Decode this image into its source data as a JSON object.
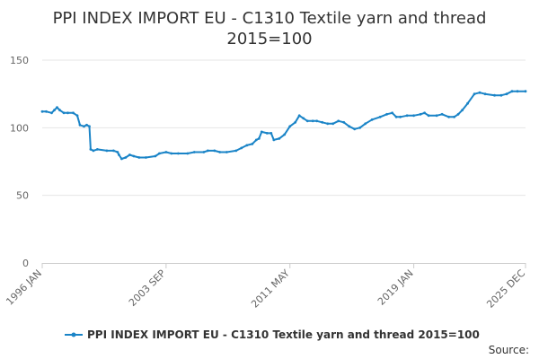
{
  "chart_data": {
    "type": "line",
    "title_lines": [
      "PPI INDEX IMPORT EU - C1310 Textile yarn and thread",
      "2015=100"
    ],
    "xlabel": "",
    "ylabel": "",
    "ylim": [
      0,
      150
    ],
    "y_ticks": [
      0,
      50,
      100,
      150
    ],
    "x_range": [
      "1996 JAN",
      "2025 DEC"
    ],
    "x_ticks": [
      "1996 JAN",
      "2003 SEP",
      "2011 MAY",
      "2019 JAN",
      "2025 DEC"
    ],
    "grid": true,
    "legend_position": "bottom",
    "colors": {
      "series": "#1a84c7",
      "grid": "#e6e6e6",
      "axis": "#cccccc"
    },
    "series": [
      {
        "name": "PPI INDEX IMPORT EU - C1310 Textile yarn and thread 2015=100",
        "points": [
          [
            "1996 JAN",
            112
          ],
          [
            "1996 APR",
            112
          ],
          [
            "1996 AUG",
            111
          ],
          [
            "1996 OCT",
            113
          ],
          [
            "1996 DEC",
            115
          ],
          [
            "1997 FEB",
            113
          ],
          [
            "1997 MAY",
            111
          ],
          [
            "1997 AUG",
            111
          ],
          [
            "1997 DEC",
            111
          ],
          [
            "1998 MAR",
            109
          ],
          [
            "1998 MAY",
            102
          ],
          [
            "1998 AUG",
            101
          ],
          [
            "1998 OCT",
            102
          ],
          [
            "1998 DEC",
            101
          ],
          [
            "1999 JAN",
            84
          ],
          [
            "1999 MAR",
            83
          ],
          [
            "1999 JUN",
            84
          ],
          [
            "2000 JAN",
            83
          ],
          [
            "2000 JUN",
            83
          ],
          [
            "2000 SEP",
            82
          ],
          [
            "2000 OCT",
            80
          ],
          [
            "2000 DEC",
            77
          ],
          [
            "2001 MAR",
            78
          ],
          [
            "2001 JUN",
            80
          ],
          [
            "2001 SEP",
            79
          ],
          [
            "2002 JAN",
            78
          ],
          [
            "2002 JUN",
            78
          ],
          [
            "2003 JAN",
            79
          ],
          [
            "2003 APR",
            81
          ],
          [
            "2003 SEP",
            82
          ],
          [
            "2004 JAN",
            81
          ],
          [
            "2004 JUN",
            81
          ],
          [
            "2005 JAN",
            81
          ],
          [
            "2005 JUN",
            82
          ],
          [
            "2006 JAN",
            82
          ],
          [
            "2006 APR",
            83
          ],
          [
            "2006 SEP",
            83
          ],
          [
            "2007 JAN",
            82
          ],
          [
            "2007 JUN",
            82
          ],
          [
            "2008 JAN",
            83
          ],
          [
            "2008 MAY",
            85
          ],
          [
            "2008 SEP",
            87
          ],
          [
            "2009 JAN",
            88
          ],
          [
            "2009 APR",
            91
          ],
          [
            "2009 JUN",
            92
          ],
          [
            "2009 AUG",
            97
          ],
          [
            "2009 DEC",
            96
          ],
          [
            "2010 MAR",
            96
          ],
          [
            "2010 MAY",
            91
          ],
          [
            "2010 SEP",
            92
          ],
          [
            "2011 JAN",
            95
          ],
          [
            "2011 MAY",
            101
          ],
          [
            "2011 SEP",
            104
          ],
          [
            "2011 DEC",
            109
          ],
          [
            "2012 MAR",
            107
          ],
          [
            "2012 JUN",
            105
          ],
          [
            "2012 OCT",
            105
          ],
          [
            "2013 JAN",
            105
          ],
          [
            "2013 MAY",
            104
          ],
          [
            "2013 SEP",
            103
          ],
          [
            "2014 JAN",
            103
          ],
          [
            "2014 MAY",
            105
          ],
          [
            "2014 SEP",
            104
          ],
          [
            "2015 JAN",
            101
          ],
          [
            "2015 MAY",
            99
          ],
          [
            "2015 SEP",
            100
          ],
          [
            "2016 JAN",
            103
          ],
          [
            "2016 JUN",
            106
          ],
          [
            "2016 DEC",
            108
          ],
          [
            "2017 MAY",
            110
          ],
          [
            "2017 SEP",
            111
          ],
          [
            "2017 DEC",
            108
          ],
          [
            "2018 MAR",
            108
          ],
          [
            "2018 AUG",
            109
          ],
          [
            "2019 JAN",
            109
          ],
          [
            "2019 JUN",
            110
          ],
          [
            "2019 SEP",
            111
          ],
          [
            "2019 DEC",
            109
          ],
          [
            "2020 JUN",
            109
          ],
          [
            "2020 OCT",
            110
          ],
          [
            "2021 MAR",
            108
          ],
          [
            "2021 JUL",
            108
          ],
          [
            "2021 OCT",
            110
          ],
          [
            "2022 JAN",
            113
          ],
          [
            "2022 MAY",
            118
          ],
          [
            "2022 OCT",
            125
          ],
          [
            "2023 FEB",
            126
          ],
          [
            "2023 JUN",
            125
          ],
          [
            "2024 JAN",
            124
          ],
          [
            "2024 JUN",
            124
          ],
          [
            "2024 OCT",
            125
          ],
          [
            "2025 FEB",
            127
          ],
          [
            "2025 JUN",
            127
          ],
          [
            "2025 DEC",
            127
          ]
        ]
      }
    ],
    "source_label": "Source:"
  }
}
